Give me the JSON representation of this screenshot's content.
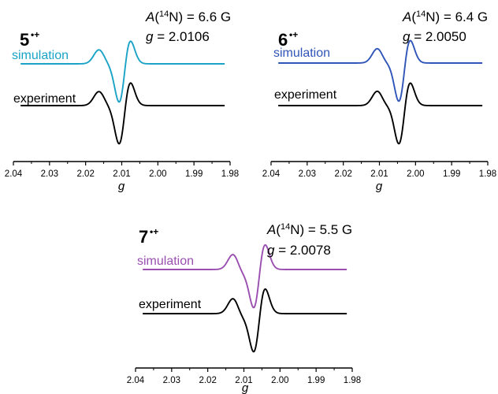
{
  "chart_data": [
    {
      "type": "line",
      "compound": "5",
      "charge": "•+",
      "params": {
        "A_prefix": "A",
        "A_open": "(",
        "A_iso": "14",
        "A_nuc": "N) = 6.6 G",
        "g_sym": "g",
        "g_val": " = 2.0106"
      },
      "xlabel": "g",
      "xlim": [
        2.04,
        1.98
      ],
      "xticks": [
        "2.04",
        "2.03",
        "2.02",
        "2.01",
        "2.00",
        "1.99",
        "1.98"
      ],
      "series": [
        {
          "name": "simulation",
          "color": "#1aa3c6",
          "peaks": [
            2.0152,
            2.0132,
            2.0113,
            2.0093
          ],
          "widths": [
            0.0016,
            0.0016,
            0.0016,
            0.0016
          ],
          "amps": [
            1.0,
            0.8,
            0.95,
            -2.4
          ]
        },
        {
          "name": "experiment",
          "color": "#000000",
          "peaks": [
            2.0152,
            2.0132,
            2.0113,
            2.0093
          ],
          "widths": [
            0.0016,
            0.0016,
            0.0016,
            0.0016
          ],
          "amps": [
            1.0,
            0.8,
            0.95,
            -2.4
          ]
        }
      ]
    },
    {
      "type": "line",
      "compound": "6",
      "charge": "•+",
      "params": {
        "A_prefix": "A",
        "A_open": "(",
        "A_iso": "14",
        "A_nuc": "N) = 6.4 G",
        "g_sym": "g",
        "g_val": " = 2.0050"
      },
      "xlabel": "g",
      "xlim": [
        2.04,
        1.98
      ],
      "xticks": [
        "2.04",
        "2.03",
        "2.02",
        "2.01",
        "2.00",
        "1.99",
        "1.98"
      ],
      "series": [
        {
          "name": "simulation",
          "color": "#2f55b8",
          "peaks": [
            2.0094,
            2.0072,
            2.0052,
            2.0032
          ],
          "widths": [
            0.0016,
            0.0016,
            0.0016,
            0.0016
          ],
          "amps": [
            1.0,
            0.8,
            0.9,
            -2.2
          ]
        },
        {
          "name": "experiment",
          "color": "#000000",
          "peaks": [
            2.0094,
            2.0072,
            2.0052,
            2.0032
          ],
          "widths": [
            0.0016,
            0.0016,
            0.0016,
            0.0016
          ],
          "amps": [
            1.0,
            0.8,
            0.9,
            -2.2
          ]
        }
      ]
    },
    {
      "type": "line",
      "compound": "7",
      "charge": "•+",
      "params": {
        "A_prefix": "A",
        "A_open": "(",
        "A_iso": "14",
        "A_nuc": "N) = 5.5 G",
        "g_sym": "g",
        "g_val": " = 2.0078"
      },
      "xlabel": "g",
      "xlim": [
        2.04,
        1.98
      ],
      "xticks": [
        "2.04",
        "2.03",
        "2.02",
        "2.01",
        "2.00",
        "1.99",
        "1.98"
      ],
      "series": [
        {
          "name": "simulation",
          "color": "#9a4fb0",
          "peaks": [
            2.0118,
            2.0098,
            2.0079,
            2.0058
          ],
          "widths": [
            0.0016,
            0.0016,
            0.0016,
            0.0016
          ],
          "amps": [
            1.0,
            0.6,
            0.7,
            -2.2
          ]
        },
        {
          "name": "experiment",
          "color": "#000000",
          "peaks": [
            2.0118,
            2.0098,
            2.0079,
            2.0058
          ],
          "widths": [
            0.0016,
            0.0016,
            0.0016,
            0.0016
          ],
          "amps": [
            1.0,
            0.6,
            0.7,
            -2.2
          ]
        }
      ]
    }
  ]
}
